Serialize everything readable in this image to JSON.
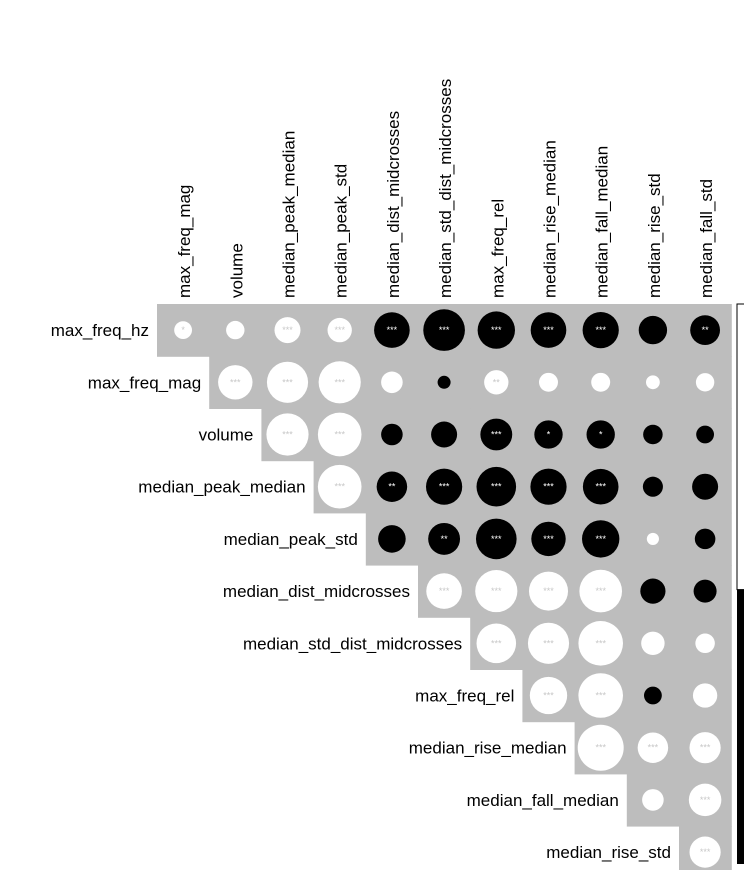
{
  "chart_data": {
    "type": "heatmap",
    "title": "",
    "legend": "right",
    "columns": [
      "max_freq_mag",
      "volume",
      "median_peak_median",
      "median_peak_std",
      "median_dist_midcrosses",
      "median_std_dist_midcrosses",
      "max_freq_rel",
      "median_rise_median",
      "median_fall_median",
      "median_rise_std",
      "median_fall_std"
    ],
    "rows": [
      "max_freq_hz",
      "max_freq_mag",
      "volume",
      "median_peak_median",
      "median_peak_std",
      "median_dist_midcrosses",
      "median_std_dist_midcrosses",
      "max_freq_rel",
      "median_rise_median",
      "median_fall_median",
      "median_rise_std"
    ],
    "correlations": [
      [
        0.15,
        0.16,
        0.32,
        0.28,
        -0.6,
        -0.82,
        -0.66,
        -0.6,
        -0.62,
        -0.38,
        -0.42
      ],
      [
        null,
        0.56,
        0.8,
        0.84,
        0.22,
        -0.08,
        0.28,
        0.17,
        0.17,
        0.09,
        0.16
      ],
      [
        null,
        null,
        0.84,
        0.9,
        -0.22,
        -0.32,
        -0.48,
        -0.38,
        -0.38,
        -0.18,
        -0.15
      ],
      [
        null,
        null,
        null,
        0.9,
        -0.44,
        -0.62,
        -0.74,
        -0.62,
        -0.6,
        -0.19,
        -0.32
      ],
      [
        null,
        null,
        null,
        null,
        -0.36,
        -0.48,
        -0.78,
        -0.56,
        -0.66,
        0.07,
        -0.2
      ],
      [
        null,
        null,
        null,
        null,
        null,
        0.6,
        0.84,
        0.72,
        0.86,
        -0.3,
        -0.25
      ],
      [
        null,
        null,
        null,
        null,
        null,
        null,
        0.74,
        0.8,
        0.94,
        0.26,
        0.18
      ],
      [
        null,
        null,
        null,
        null,
        null,
        null,
        null,
        0.66,
        0.94,
        -0.15,
        0.28
      ],
      [
        null,
        null,
        null,
        null,
        null,
        null,
        null,
        null,
        1.0,
        0.44,
        0.46
      ],
      [
        null,
        null,
        null,
        null,
        null,
        null,
        null,
        null,
        null,
        0.22,
        0.5
      ],
      [
        null,
        null,
        null,
        null,
        null,
        null,
        null,
        null,
        null,
        null,
        0.46
      ]
    ],
    "significance": [
      [
        "*",
        "",
        "***",
        "***",
        "***",
        "***",
        "***",
        "***",
        "***",
        "",
        "**"
      ],
      [
        null,
        "***",
        "***",
        "***",
        "",
        "",
        "**",
        "",
        "",
        "",
        ""
      ],
      [
        null,
        null,
        "***",
        "***",
        "",
        "",
        "***",
        "*",
        "*",
        "",
        ""
      ],
      [
        null,
        null,
        null,
        "***",
        "**",
        "***",
        "***",
        "***",
        "***",
        "",
        ""
      ],
      [
        null,
        null,
        null,
        null,
        "",
        "**",
        "***",
        "***",
        "***",
        "",
        ""
      ],
      [
        null,
        null,
        null,
        null,
        null,
        "***",
        "***",
        "***",
        "***",
        "",
        ""
      ],
      [
        null,
        null,
        null,
        null,
        null,
        null,
        "***",
        "***",
        "***",
        "",
        ""
      ],
      [
        null,
        null,
        null,
        null,
        null,
        null,
        null,
        "***",
        "***",
        "",
        ""
      ],
      [
        null,
        null,
        null,
        null,
        null,
        null,
        null,
        null,
        "***",
        "***",
        "***"
      ],
      [
        null,
        null,
        null,
        null,
        null,
        null,
        null,
        null,
        null,
        "",
        "***"
      ],
      [
        null,
        null,
        null,
        null,
        null,
        null,
        null,
        null,
        null,
        null,
        "***"
      ]
    ],
    "color_scale": {
      "positive": "#ffffff",
      "negative": "#000000",
      "cell_background": "#bdbdbd"
    }
  }
}
